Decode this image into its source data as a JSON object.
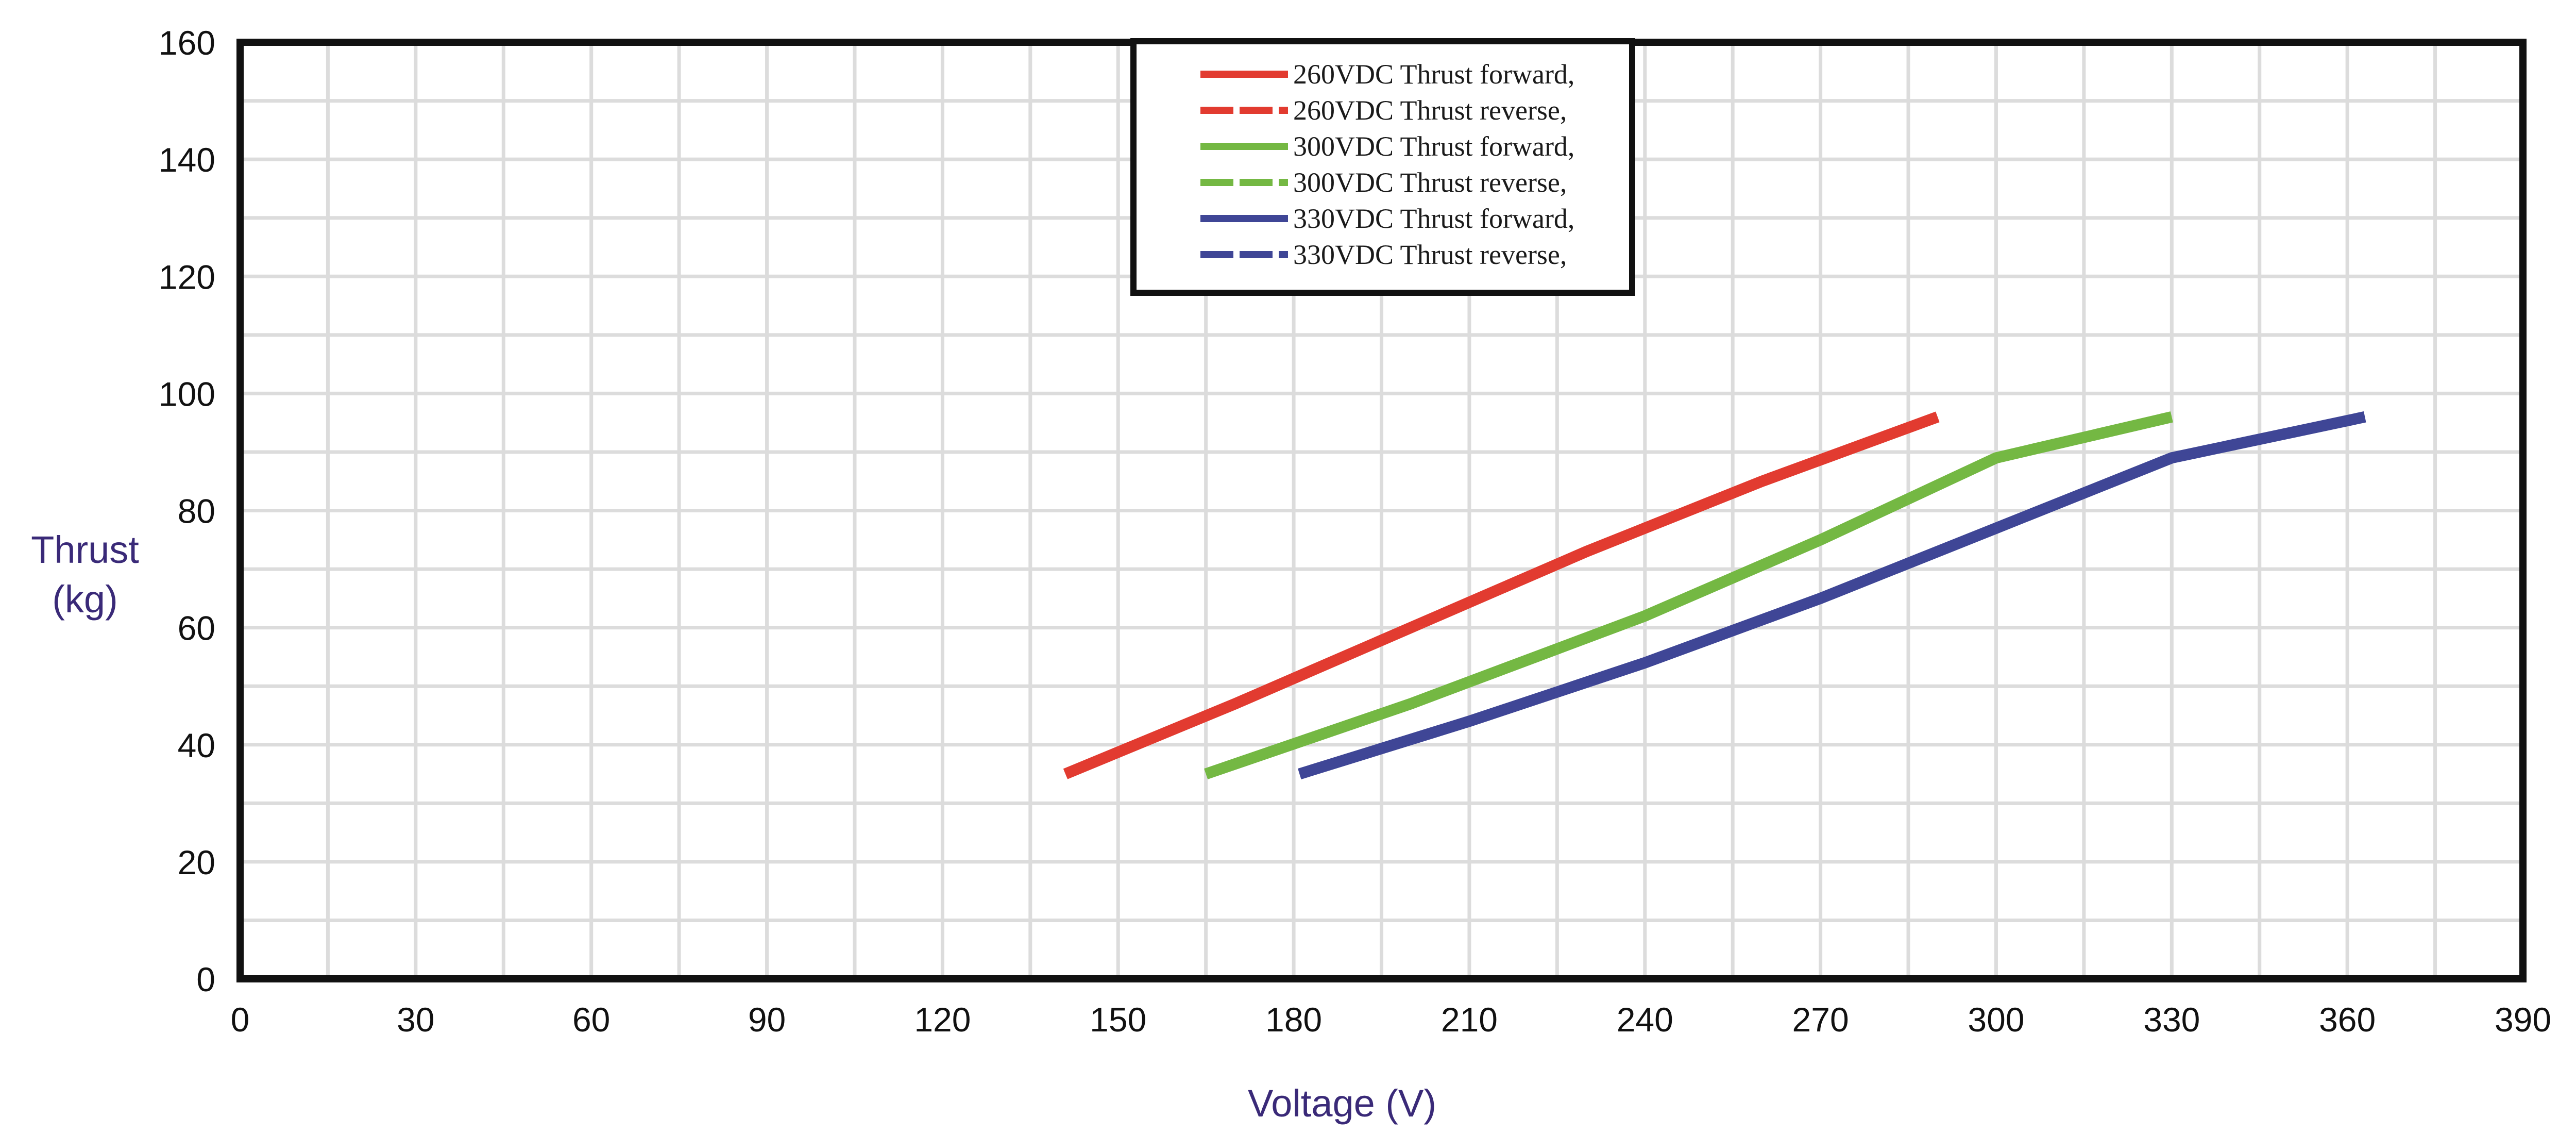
{
  "chart_data": {
    "type": "line",
    "title": "",
    "xlabel": "Voltage (V)",
    "ylabel_lines": [
      "Thrust",
      "(kg)"
    ],
    "xlim": [
      0,
      390
    ],
    "ylim": [
      0,
      160
    ],
    "xticks": [
      0,
      30,
      60,
      90,
      120,
      150,
      180,
      210,
      240,
      270,
      300,
      330,
      360,
      390
    ],
    "yticks": [
      0,
      20,
      40,
      60,
      80,
      100,
      120,
      140,
      160
    ],
    "x_minor_step": 15,
    "y_minor_step": 10,
    "grid": true,
    "legend_position": "top-center",
    "series": [
      {
        "name": "260VDC   Thrust forward,",
        "color": "#e23b30",
        "dash": "solid",
        "x": [
          141,
          170,
          200,
          230,
          260,
          290
        ],
        "y": [
          35,
          47,
          60,
          73,
          85,
          96
        ]
      },
      {
        "name": "260VDC   Thrust reverse,",
        "color": "#e23b30",
        "dash": "dashed",
        "x": [
          141,
          170,
          200,
          230,
          260,
          290
        ],
        "y": [
          35,
          47,
          60,
          73,
          85,
          96
        ]
      },
      {
        "name": "300VDC   Thrust forward,",
        "color": "#74b843",
        "dash": "solid",
        "x": [
          165,
          200,
          240,
          270,
          300,
          330
        ],
        "y": [
          35,
          47,
          62,
          75,
          89,
          96
        ]
      },
      {
        "name": "300VDC   Thrust reverse,",
        "color": "#74b843",
        "dash": "dashed",
        "x": [
          165,
          200,
          240,
          270,
          300,
          330
        ],
        "y": [
          35,
          47,
          62,
          75,
          89,
          96
        ]
      },
      {
        "name": "330VDC   Thrust forward,",
        "color": "#3f4696",
        "dash": "solid",
        "x": [
          181,
          210,
          240,
          270,
          300,
          330,
          363
        ],
        "y": [
          35,
          44,
          54,
          65,
          77,
          89,
          96
        ]
      },
      {
        "name": "330VDC   Thrust reverse,",
        "color": "#3f4696",
        "dash": "dashed",
        "x": [
          181,
          210,
          240,
          270,
          300,
          330,
          363
        ],
        "y": [
          35,
          44,
          54,
          65,
          77,
          89,
          96
        ]
      }
    ]
  }
}
